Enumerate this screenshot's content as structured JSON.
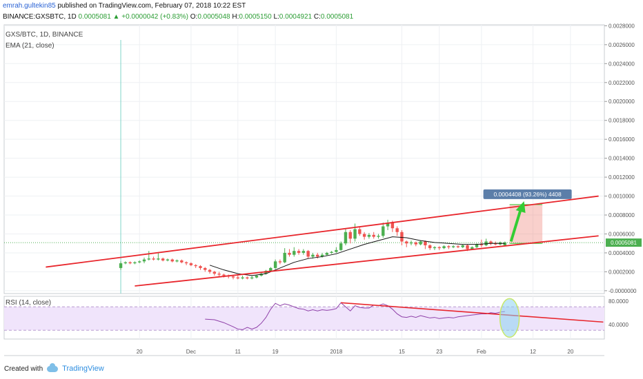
{
  "header": {
    "user": "emrah.gultekin85",
    "published_text": "published on TradingView.com, February 07, 2018 10:22 EST",
    "symbol": "BINANCE:GXSBTC, 1D",
    "last": "0.0005081",
    "change_arrow": "▲",
    "change": "+0.0000042 (+0.83%)",
    "o_label": "O:",
    "o": "0.0005048",
    "h_label": "H:",
    "h": "0.0005150",
    "l_label": "L:",
    "l": "0.0004921",
    "c_label": "C:",
    "c": "0.0005081"
  },
  "panels": {
    "main_title": "GXS/BTC, 1D, BINANCE",
    "ema_label": "EMA (21, close)",
    "rsi_label": "RSI (14, close)"
  },
  "annotation": {
    "measure_label": "0.0004408 (93.26%) 4408"
  },
  "footer": {
    "created_with": "Created with",
    "brand": "TradingView"
  },
  "colors": {
    "up": "#4caf50",
    "down": "#ef5350",
    "trendline": "#e8262c",
    "ema": "#111111",
    "rsi": "#8e3fa8",
    "arrow": "#33cc33",
    "price_badge": "#5b7ea9",
    "rsi_band": "#f0e4fb"
  },
  "chart_data": [
    {
      "type": "candlestick",
      "y_ticks": [
        "0.0028000",
        "0.0026000",
        "0.0024000",
        "0.0022000",
        "0.0020000",
        "0.0018000",
        "0.0016000",
        "0.0014000",
        "0.0012000",
        "0.0010000",
        "0.0008000",
        "0.0006000",
        "0.0004000",
        "0.0002000",
        "-0.0000000"
      ],
      "ylim": [
        -3e-05,
        0.00281
      ],
      "x_ticks": [
        {
          "label": "20",
          "day": 20
        },
        {
          "label": "Dec",
          "day": 31
        },
        {
          "label": "11",
          "day": 41
        },
        {
          "label": "19",
          "day": 49
        },
        {
          "label": "2018",
          "day": 62
        },
        {
          "label": "15",
          "day": 76
        },
        {
          "label": "23",
          "day": 84
        },
        {
          "label": "Feb",
          "day": 93
        },
        {
          "label": "12",
          "day": 104
        },
        {
          "label": "20",
          "day": 112
        }
      ],
      "last_price": "0.0005081",
      "candles": [
        [
          16,
          0.00024,
          0.00029,
          0.00022,
          0.00031
        ],
        [
          17,
          0.00029,
          0.0003,
          0.00028,
          0.00031
        ],
        [
          18,
          0.0003,
          0.00029,
          0.00028,
          0.00031
        ],
        [
          19,
          0.00029,
          0.0003,
          0.00028,
          0.00031
        ],
        [
          20,
          0.0003,
          0.00031,
          0.00029,
          0.00032
        ],
        [
          21,
          0.00031,
          0.00033,
          0.00029,
          0.00035
        ],
        [
          22,
          0.00033,
          0.00034,
          0.00032,
          0.00042
        ],
        [
          23,
          0.00034,
          0.00033,
          0.00032,
          0.00036
        ],
        [
          24,
          0.00033,
          0.00034,
          0.00032,
          0.0004
        ],
        [
          25,
          0.00034,
          0.00032,
          0.00031,
          0.00035
        ],
        [
          26,
          0.00032,
          0.00033,
          0.00031,
          0.00034
        ],
        [
          27,
          0.00033,
          0.00031,
          0.0003,
          0.00034
        ],
        [
          28,
          0.00031,
          0.00032,
          0.0003,
          0.00033
        ],
        [
          29,
          0.00032,
          0.0003,
          0.00029,
          0.00033
        ],
        [
          30,
          0.0003,
          0.00029,
          0.00027,
          0.00031
        ],
        [
          31,
          0.00029,
          0.00027,
          0.00026,
          0.0003
        ],
        [
          32,
          0.00027,
          0.00026,
          0.00024,
          0.00028
        ],
        [
          33,
          0.00026,
          0.00024,
          0.00022,
          0.00027
        ],
        [
          34,
          0.00024,
          0.00022,
          0.0002,
          0.00025
        ],
        [
          35,
          0.00022,
          0.0002,
          0.00018,
          0.00023
        ],
        [
          36,
          0.0002,
          0.00018,
          0.00016,
          0.00021
        ],
        [
          37,
          0.00018,
          0.00017,
          0.00015,
          0.0002
        ],
        [
          38,
          0.00017,
          0.00016,
          0.00014,
          0.00018
        ],
        [
          39,
          0.00016,
          0.00015,
          0.00013,
          0.00017
        ],
        [
          40,
          0.00015,
          0.00014,
          0.00012,
          0.00016
        ],
        [
          41,
          0.00014,
          0.00013,
          0.00012,
          0.00016
        ],
        [
          42,
          0.00013,
          0.00014,
          0.00012,
          0.00016
        ],
        [
          43,
          0.00014,
          0.00013,
          0.00012,
          0.00015
        ],
        [
          44,
          0.00013,
          0.00014,
          0.00012,
          0.00016
        ],
        [
          45,
          0.00014,
          0.00016,
          0.00013,
          0.00017
        ],
        [
          46,
          0.00016,
          0.00018,
          0.00015,
          0.0002
        ],
        [
          47,
          0.00018,
          0.00021,
          0.00017,
          0.00022
        ],
        [
          48,
          0.00021,
          0.00024,
          0.0002,
          0.00025
        ],
        [
          49,
          0.00024,
          0.00031,
          0.00023,
          0.00033
        ],
        [
          50,
          0.00031,
          0.0003,
          0.00028,
          0.00033
        ],
        [
          51,
          0.0003,
          0.0004,
          0.00029,
          0.00045
        ],
        [
          52,
          0.0004,
          0.00038,
          0.00036,
          0.00044
        ],
        [
          53,
          0.00038,
          0.00042,
          0.00036,
          0.00046
        ],
        [
          54,
          0.00042,
          0.0004,
          0.00038,
          0.00044
        ],
        [
          55,
          0.0004,
          0.00042,
          0.00038,
          0.00044
        ],
        [
          56,
          0.00042,
          0.00036,
          0.00034,
          0.00043
        ],
        [
          57,
          0.00036,
          0.00038,
          0.00034,
          0.0004
        ],
        [
          58,
          0.00038,
          0.00036,
          0.00034,
          0.0004
        ],
        [
          59,
          0.00036,
          0.00038,
          0.00035,
          0.0004
        ],
        [
          60,
          0.00038,
          0.0004,
          0.00037,
          0.00041
        ],
        [
          61,
          0.0004,
          0.00041,
          0.00039,
          0.00042
        ],
        [
          62,
          0.00041,
          0.00043,
          0.0004,
          0.00046
        ],
        [
          63,
          0.00043,
          0.0005,
          0.00042,
          0.00052
        ],
        [
          64,
          0.0005,
          0.00062,
          0.00048,
          0.00066
        ],
        [
          65,
          0.00062,
          0.00055,
          0.0005,
          0.00064
        ],
        [
          66,
          0.00055,
          0.00065,
          0.00052,
          0.00071
        ],
        [
          67,
          0.00065,
          0.0006,
          0.00058,
          0.00068
        ],
        [
          68,
          0.0006,
          0.00057,
          0.00054,
          0.00062
        ],
        [
          69,
          0.00057,
          0.00059,
          0.00055,
          0.00061
        ],
        [
          70,
          0.00059,
          0.00057,
          0.00055,
          0.00062
        ],
        [
          71,
          0.00057,
          0.00058,
          0.00055,
          0.0006
        ],
        [
          72,
          0.00058,
          0.00068,
          0.00056,
          0.00072
        ],
        [
          73,
          0.00068,
          0.00072,
          0.00064,
          0.00075
        ],
        [
          74,
          0.00072,
          0.00066,
          0.00062,
          0.00074
        ],
        [
          75,
          0.00066,
          0.00062,
          0.00058,
          0.00068
        ],
        [
          76,
          0.00062,
          0.00052,
          0.00048,
          0.00064
        ],
        [
          77,
          0.00052,
          0.0005,
          0.00046,
          0.00053
        ],
        [
          78,
          0.0005,
          0.00051,
          0.00048,
          0.00053
        ],
        [
          79,
          0.00051,
          0.00049,
          0.00047,
          0.00052
        ],
        [
          80,
          0.00049,
          0.00052,
          0.00048,
          0.00053
        ],
        [
          81,
          0.00052,
          0.00048,
          0.00044,
          0.00053
        ],
        [
          82,
          0.00048,
          0.00045,
          0.00043,
          0.00049
        ],
        [
          83,
          0.00045,
          0.00046,
          0.00043,
          0.00047
        ],
        [
          84,
          0.00046,
          0.00045,
          0.00043,
          0.00047
        ],
        [
          85,
          0.00045,
          0.00047,
          0.00044,
          0.00048
        ],
        [
          86,
          0.00047,
          0.00046,
          0.00044,
          0.00048
        ],
        [
          87,
          0.00046,
          0.00047,
          0.00045,
          0.00048
        ],
        [
          88,
          0.00047,
          0.00046,
          0.00045,
          0.00048
        ],
        [
          89,
          0.00046,
          0.00048,
          0.00045,
          0.00049
        ],
        [
          90,
          0.00048,
          0.00044,
          0.00042,
          0.00049
        ],
        [
          91,
          0.00044,
          0.00046,
          0.00043,
          0.00047
        ],
        [
          92,
          0.00046,
          0.00049,
          0.00045,
          0.0005
        ],
        [
          93,
          0.00049,
          0.00048,
          0.00046,
          0.00054
        ],
        [
          94,
          0.00048,
          0.00052,
          0.00047,
          0.00055
        ],
        [
          95,
          0.00052,
          0.0005,
          0.00048,
          0.00053
        ],
        [
          96,
          0.0005,
          0.00049,
          0.00048,
          0.00052
        ],
        [
          97,
          0.00049,
          0.00051,
          0.00048,
          0.00052
        ],
        [
          98,
          0.00048,
          0.00051,
          0.00049,
          0.00052
        ]
      ],
      "ema": [
        [
          35,
          0.00027
        ],
        [
          38,
          0.00022
        ],
        [
          41,
          0.00018
        ],
        [
          44,
          0.00016
        ],
        [
          47,
          0.00018
        ],
        [
          50,
          0.00024
        ],
        [
          53,
          0.0003
        ],
        [
          56,
          0.00034
        ],
        [
          59,
          0.00036
        ],
        [
          62,
          0.00039
        ],
        [
          65,
          0.00044
        ],
        [
          68,
          0.00049
        ],
        [
          71,
          0.00053
        ],
        [
          74,
          0.00057
        ],
        [
          77,
          0.00056
        ],
        [
          80,
          0.00053
        ],
        [
          83,
          0.00051
        ],
        [
          86,
          0.0005
        ],
        [
          89,
          0.00049
        ],
        [
          92,
          0.00049
        ],
        [
          95,
          0.0005
        ],
        [
          98,
          0.0005
        ]
      ],
      "trendlines": [
        {
          "from": [
            0,
            0.00025
          ],
          "to": [
            118,
            0.001
          ]
        },
        {
          "from": [
            19,
            5e-05
          ],
          "to": [
            118,
            0.00058
          ]
        }
      ],
      "measure": {
        "from_day": 99,
        "to_day": 106,
        "low": 0.0005,
        "high": 0.00091
      },
      "annotation": "0.0004408 (93.26%) 4408"
    },
    {
      "type": "line",
      "title": "RSI (14, close)",
      "y_ticks": [
        "80.0000",
        "40.0000"
      ],
      "ylim": [
        15,
        88
      ],
      "band": [
        30,
        70
      ],
      "rsi": [
        [
          34,
          49
        ],
        [
          36,
          48
        ],
        [
          38,
          43
        ],
        [
          40,
          36
        ],
        [
          41,
          32
        ],
        [
          42,
          31
        ],
        [
          43,
          35
        ],
        [
          44,
          32
        ],
        [
          45,
          35
        ],
        [
          46,
          42
        ],
        [
          47,
          52
        ],
        [
          48,
          66
        ],
        [
          49,
          76
        ],
        [
          50,
          72
        ],
        [
          51,
          75
        ],
        [
          52,
          73
        ],
        [
          53,
          70
        ],
        [
          54,
          67
        ],
        [
          55,
          66
        ],
        [
          56,
          63
        ],
        [
          57,
          65
        ],
        [
          58,
          63
        ],
        [
          59,
          65
        ],
        [
          60,
          64
        ],
        [
          61,
          65
        ],
        [
          62,
          67
        ],
        [
          63,
          77
        ],
        [
          64,
          70
        ],
        [
          65,
          63
        ],
        [
          66,
          72
        ],
        [
          67,
          69
        ],
        [
          68,
          68
        ],
        [
          69,
          68
        ],
        [
          70,
          73
        ],
        [
          71,
          72
        ],
        [
          72,
          75
        ],
        [
          73,
          72
        ],
        [
          74,
          66
        ],
        [
          75,
          58
        ],
        [
          76,
          53
        ],
        [
          77,
          52
        ],
        [
          78,
          54
        ],
        [
          79,
          52
        ],
        [
          80,
          55
        ],
        [
          81,
          53
        ],
        [
          82,
          51
        ],
        [
          83,
          52
        ],
        [
          84,
          50
        ],
        [
          85,
          51
        ],
        [
          86,
          52
        ],
        [
          87,
          51
        ],
        [
          88,
          53
        ],
        [
          89,
          54
        ],
        [
          90,
          55
        ],
        [
          91,
          56
        ],
        [
          92,
          57
        ],
        [
          93,
          58
        ],
        [
          94,
          58
        ],
        [
          95,
          60
        ],
        [
          96,
          59
        ],
        [
          97,
          61
        ],
        [
          98,
          62
        ]
      ],
      "trendline": {
        "from": [
          63,
          77
        ],
        "to": [
          119,
          44
        ]
      }
    }
  ]
}
